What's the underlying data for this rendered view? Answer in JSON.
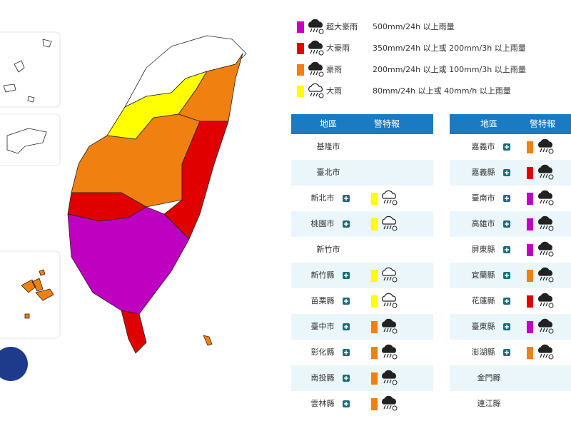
{
  "legend": [
    {
      "label": "超大豪雨",
      "description": "500mm/24h 以上雨量",
      "color": "#c000c0"
    },
    {
      "label": "大豪雨",
      "description": "350mm/24h 以上或 200mm/3h 以上雨量",
      "color": "#e00000"
    },
    {
      "label": "豪雨",
      "description": "200mm/24h 以上或 100mm/3h 以上雨量",
      "color": "#f08010"
    },
    {
      "label": "大雨",
      "description": "80mm/24h 以上或 40mm/h 以上雨量",
      "color": "#ffff00"
    }
  ],
  "tables": [
    {
      "headers": [
        "地區",
        "警特報"
      ],
      "rows": [
        {
          "region": "基隆市"
        },
        {
          "region": "臺北市"
        },
        {
          "region": "新北市",
          "color": "#ffff00"
        },
        {
          "region": "桃園市",
          "color": "#ffff00"
        },
        {
          "region": "新竹市"
        },
        {
          "region": "新竹縣",
          "color": "#ffff00"
        },
        {
          "region": "苗栗縣",
          "color": "#ffff00"
        },
        {
          "region": "臺中市",
          "color": "#f08010"
        },
        {
          "region": "彰化縣",
          "color": "#f08010"
        },
        {
          "region": "南投縣",
          "color": "#f08010"
        },
        {
          "region": "雲林縣",
          "color": "#f08010"
        }
      ]
    },
    {
      "headers": [
        "地區",
        "警特報"
      ],
      "rows": [
        {
          "region": "嘉義市",
          "color": "#f08010"
        },
        {
          "region": "嘉義縣",
          "color": "#e00000"
        },
        {
          "region": "臺南市",
          "color": "#c000c0"
        },
        {
          "region": "高雄市",
          "color": "#c000c0"
        },
        {
          "region": "屏東縣",
          "color": "#c000c0"
        },
        {
          "region": "宜蘭縣",
          "color": "#f08010"
        },
        {
          "region": "花蓮縣",
          "color": "#e00000"
        },
        {
          "region": "臺東縣",
          "color": "#c000c0"
        },
        {
          "region": "澎湖縣",
          "color": "#f08010"
        },
        {
          "region": "金門縣"
        },
        {
          "region": "連江縣"
        }
      ]
    }
  ]
}
